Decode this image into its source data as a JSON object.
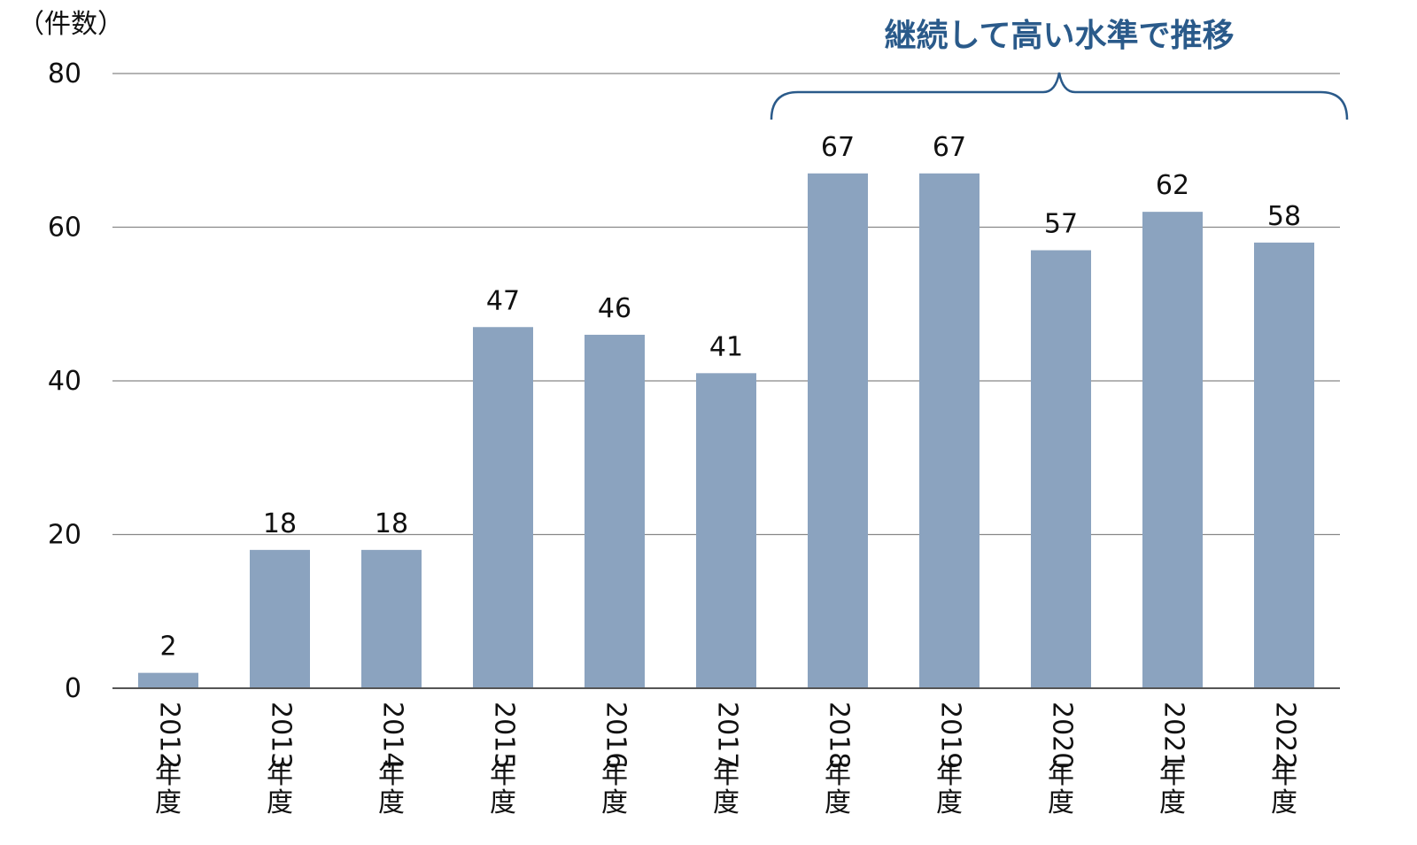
{
  "chart_data": {
    "type": "bar",
    "ylabel": "（件数）",
    "ylim": [
      0,
      80
    ],
    "yticks": [
      0,
      20,
      40,
      60,
      80
    ],
    "categories": [
      "2012年度",
      "2013年度",
      "2014年度",
      "2015年度",
      "2016年度",
      "2017年度",
      "2018年度",
      "2019年度",
      "2020年度",
      "2021年度",
      "2022年度"
    ],
    "values": [
      2,
      18,
      18,
      47,
      46,
      41,
      67,
      67,
      57,
      62,
      58
    ],
    "grid": true,
    "annotation": {
      "text": "継続して高い水準で推移",
      "from_category": "2018年度",
      "to_category": "2022年度"
    },
    "colors": {
      "bar": "#8ba3bf",
      "annotation": "#2a5a8a",
      "grid": "#888888"
    }
  }
}
